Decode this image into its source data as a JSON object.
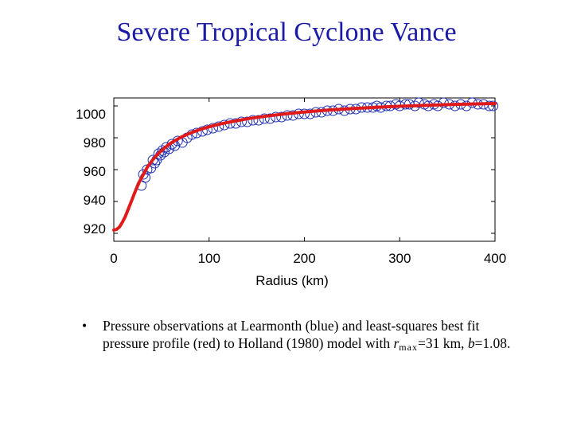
{
  "slide": {
    "title": "Severe Tropical Cyclone Vance"
  },
  "caption": {
    "bullet": "•",
    "part1": "Pressure observations at Learmonth (blue) and least-squares best fit pressure profile (red) to Holland (1980) model with ",
    "r_symbol": "r",
    "r_subscript": "max",
    "part2": "=31 km, ",
    "b_symbol": "b",
    "part3": "=1.08."
  },
  "chart_data": {
    "type": "scatter",
    "title": "",
    "xlabel": "Radius (km)",
    "ylabel": "",
    "xlim": [
      0,
      400
    ],
    "ylim": [
      915,
      1005
    ],
    "xticks": [
      0,
      100,
      200,
      300,
      400
    ],
    "yticks": [
      920,
      940,
      960,
      980,
      1000
    ],
    "grid": false,
    "colors": {
      "observations": "#1f2fb0",
      "fit": "#e01a1a"
    },
    "series": [
      {
        "name": "Pressure observations at Learmonth",
        "type": "scatter",
        "marker": "circle",
        "x": [
          29,
          31,
          33,
          35,
          39,
          41,
          43,
          45,
          47,
          49,
          51,
          53,
          55,
          58,
          61,
          64,
          67,
          72,
          77,
          82,
          87,
          93,
          98,
          104,
          110,
          116,
          122,
          128,
          134,
          140,
          146,
          152,
          158,
          164,
          170,
          176,
          182,
          188,
          194,
          200,
          206,
          212,
          218,
          224,
          230,
          236,
          242,
          248,
          254,
          260,
          266,
          272,
          276,
          280,
          286,
          290,
          296,
          300,
          306,
          310,
          316,
          320,
          326,
          330,
          336,
          340,
          346,
          352,
          358,
          364,
          370,
          376,
          382,
          388,
          394,
          398
        ],
        "y": [
          950,
          957,
          955,
          960,
          961,
          966,
          964,
          966,
          970,
          969,
          972,
          971,
          974,
          973,
          976,
          975,
          978,
          977,
          980,
          982,
          983,
          984,
          985,
          986,
          987,
          988,
          989,
          989,
          990,
          990,
          991,
          991,
          992,
          992,
          993,
          993,
          994,
          994,
          995,
          995,
          995,
          996,
          996,
          997,
          997,
          998,
          997,
          998,
          998,
          999,
          999,
          999,
          1000,
          999,
          1000,
          1000,
          1001,
          1000,
          1001,
          1001,
          1000,
          1002,
          1001,
          1000,
          1001,
          1000,
          1002,
          1001,
          1000,
          1001,
          1000,
          1002,
          1001,
          1001,
          1000,
          1000
        ]
      },
      {
        "name": "Holland (1980) best fit",
        "type": "line",
        "x": [
          0,
          3,
          6,
          9,
          12,
          15,
          18,
          21,
          24,
          27,
          31,
          35,
          40,
          45,
          50,
          55,
          60,
          70,
          80,
          90,
          100,
          110,
          120,
          140,
          160,
          180,
          200,
          225,
          250,
          275,
          300,
          325,
          350,
          375,
          400
        ],
        "y": [
          922,
          922.5,
          924,
          927,
          930.5,
          935,
          939.5,
          944,
          948.5,
          952.5,
          957,
          961.3,
          965.5,
          969,
          971.9,
          974.5,
          976.7,
          980.2,
          982.9,
          985.1,
          986.9,
          988.4,
          989.7,
          991.9,
          993.6,
          995,
          996.2,
          997.4,
          998.3,
          999.1,
          999.8,
          1000.3,
          1000.8,
          1001.2,
          1001.5
        ]
      }
    ]
  }
}
